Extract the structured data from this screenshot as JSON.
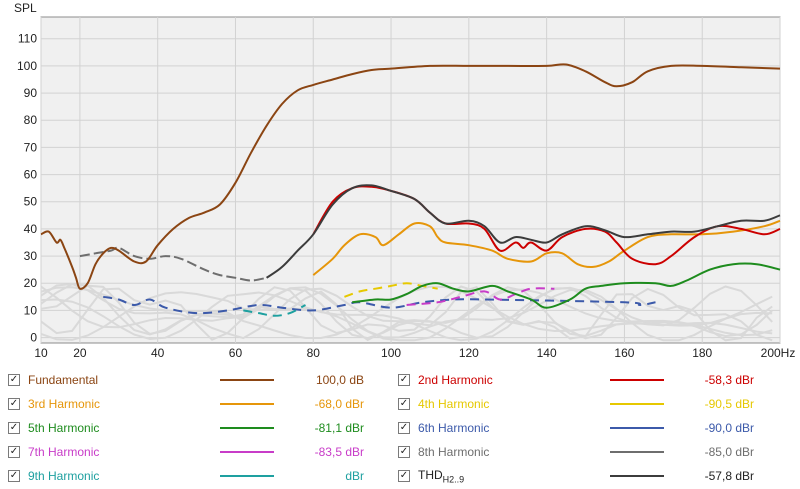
{
  "chart_data": {
    "type": "line",
    "ylabel": "SPL",
    "xunit": "Hz",
    "xlim": [
      10,
      200
    ],
    "ylim": [
      -2,
      118
    ],
    "x_ticks": [
      10,
      20,
      40,
      60,
      80,
      100,
      120,
      140,
      160,
      180,
      200
    ],
    "x_tick_labels": [
      "10",
      "20",
      "40",
      "60",
      "80",
      "100",
      "120",
      "140",
      "160",
      "180",
      "200Hz"
    ],
    "y_ticks": [
      0,
      10,
      20,
      30,
      40,
      50,
      60,
      70,
      80,
      90,
      100,
      110
    ],
    "grid": true,
    "series": [
      {
        "name": "Fundamental",
        "color": "#8b4513",
        "value": "100,0 dB",
        "points": [
          [
            10,
            38
          ],
          [
            12,
            39
          ],
          [
            14,
            35
          ],
          [
            15,
            36
          ],
          [
            16,
            33
          ],
          [
            18,
            26
          ],
          [
            19,
            22
          ],
          [
            20,
            18
          ],
          [
            22,
            20
          ],
          [
            24,
            27
          ],
          [
            26,
            31
          ],
          [
            28,
            33
          ],
          [
            30,
            32
          ],
          [
            34,
            28
          ],
          [
            37,
            28
          ],
          [
            40,
            34
          ],
          [
            44,
            40
          ],
          [
            48,
            44
          ],
          [
            52,
            46
          ],
          [
            56,
            49
          ],
          [
            60,
            57
          ],
          [
            64,
            68
          ],
          [
            68,
            78
          ],
          [
            72,
            86
          ],
          [
            76,
            91
          ],
          [
            80,
            93
          ],
          [
            85,
            95
          ],
          [
            90,
            97
          ],
          [
            95,
            98.5
          ],
          [
            100,
            99
          ],
          [
            110,
            100
          ],
          [
            120,
            100
          ],
          [
            130,
            100
          ],
          [
            140,
            100
          ],
          [
            145,
            100.5
          ],
          [
            150,
            98
          ],
          [
            155,
            94
          ],
          [
            158,
            92.5
          ],
          [
            162,
            94
          ],
          [
            166,
            98
          ],
          [
            172,
            100
          ],
          [
            180,
            100
          ],
          [
            190,
            99.5
          ],
          [
            200,
            99
          ]
        ]
      },
      {
        "name": "2nd Harmonic",
        "color": "#cc0000",
        "value": "-58,3 dBr",
        "points": [
          [
            80,
            38
          ],
          [
            85,
            50
          ],
          [
            90,
            55
          ],
          [
            95,
            55.5
          ],
          [
            100,
            54
          ],
          [
            106,
            51
          ],
          [
            110,
            46
          ],
          [
            114,
            42
          ],
          [
            120,
            42
          ],
          [
            124,
            40
          ],
          [
            128,
            32
          ],
          [
            132,
            35
          ],
          [
            134,
            33
          ],
          [
            136,
            35
          ],
          [
            140,
            32
          ],
          [
            144,
            37
          ],
          [
            150,
            40
          ],
          [
            155,
            39
          ],
          [
            158,
            35
          ],
          [
            162,
            29
          ],
          [
            168,
            27
          ],
          [
            172,
            30
          ],
          [
            178,
            37
          ],
          [
            184,
            41
          ],
          [
            190,
            40
          ],
          [
            196,
            38
          ],
          [
            200,
            40
          ]
        ]
      },
      {
        "name": "3rd Harmonic",
        "color": "#e6960a",
        "value": "-68,0 dBr",
        "points": [
          [
            80,
            23
          ],
          [
            85,
            29
          ],
          [
            88,
            34
          ],
          [
            92,
            38
          ],
          [
            96,
            37
          ],
          [
            98,
            34
          ],
          [
            102,
            38
          ],
          [
            106,
            42
          ],
          [
            110,
            41
          ],
          [
            112,
            37
          ],
          [
            114,
            35
          ],
          [
            120,
            34
          ],
          [
            126,
            32
          ],
          [
            130,
            29
          ],
          [
            136,
            28
          ],
          [
            140,
            31
          ],
          [
            144,
            31
          ],
          [
            148,
            27
          ],
          [
            152,
            26
          ],
          [
            156,
            28
          ],
          [
            160,
            32
          ],
          [
            166,
            37
          ],
          [
            172,
            38
          ],
          [
            180,
            38
          ],
          [
            188,
            39
          ],
          [
            196,
            41
          ],
          [
            200,
            43
          ]
        ]
      },
      {
        "name": "4th Harmonic",
        "color": "#e6c800",
        "value": "-90,5 dBr",
        "points": [
          [
            88,
            15
          ],
          [
            92,
            17
          ],
          [
            96,
            18
          ],
          [
            100,
            19
          ],
          [
            104,
            20
          ],
          [
            108,
            19
          ],
          [
            112,
            18
          ]
        ]
      },
      {
        "name": "5th Harmonic",
        "color": "#1e8c1e",
        "value": "-81,1 dBr",
        "points": [
          [
            90,
            13
          ],
          [
            96,
            14
          ],
          [
            100,
            14
          ],
          [
            104,
            16
          ],
          [
            108,
            19
          ],
          [
            112,
            20
          ],
          [
            116,
            18
          ],
          [
            120,
            17
          ],
          [
            126,
            19
          ],
          [
            130,
            17
          ],
          [
            136,
            14
          ],
          [
            140,
            11
          ],
          [
            146,
            14
          ],
          [
            150,
            18
          ],
          [
            154,
            19
          ],
          [
            160,
            20
          ],
          [
            168,
            20
          ],
          [
            172,
            19
          ],
          [
            176,
            21
          ],
          [
            182,
            25
          ],
          [
            188,
            27
          ],
          [
            194,
            27
          ],
          [
            200,
            25
          ]
        ]
      },
      {
        "name": "6th Harmonic",
        "color": "#3c5aaa",
        "value": "-90,0 dBr",
        "points": [
          [
            26,
            15
          ],
          [
            30,
            14
          ],
          [
            34,
            12
          ],
          [
            38,
            14
          ],
          [
            42,
            11
          ],
          [
            50,
            9
          ],
          [
            58,
            10
          ],
          [
            66,
            12
          ],
          [
            72,
            11
          ],
          [
            80,
            10
          ],
          [
            88,
            12
          ],
          [
            92,
            13
          ],
          [
            100,
            11
          ],
          [
            108,
            13
          ],
          [
            116,
            14
          ],
          [
            124,
            14
          ],
          [
            160,
            13
          ],
          [
            164,
            12
          ],
          [
            168,
            13
          ]
        ]
      },
      {
        "name": "7th Harmonic",
        "color": "#c83cc8",
        "value": "-83,5 dBr",
        "points": [
          [
            104,
            12
          ],
          [
            112,
            13
          ],
          [
            118,
            15
          ],
          [
            124,
            17
          ],
          [
            128,
            14
          ],
          [
            132,
            16
          ],
          [
            136,
            18
          ],
          [
            142,
            18
          ]
        ]
      },
      {
        "name": "8th Harmonic",
        "color": "#6e6e6e",
        "value": "-85,0 dBr",
        "points": [
          [
            20,
            30
          ],
          [
            24,
            31
          ],
          [
            28,
            32
          ],
          [
            30,
            33
          ],
          [
            34,
            30
          ],
          [
            38,
            29
          ],
          [
            42,
            30
          ],
          [
            46,
            29
          ],
          [
            52,
            25
          ],
          [
            56,
            23
          ],
          [
            60,
            22
          ],
          [
            64,
            21
          ],
          [
            68,
            22
          ]
        ]
      },
      {
        "name": "9th Harmonic",
        "color": "#1ea0a0",
        "value": "dBr",
        "points": [
          [
            62,
            10
          ],
          [
            66,
            9
          ],
          [
            70,
            8
          ],
          [
            74,
            9
          ],
          [
            78,
            12
          ]
        ]
      },
      {
        "name": "THD H2..9",
        "color": "#3c3c3c",
        "value": "-57,8 dBr",
        "points": [
          [
            68,
            22
          ],
          [
            72,
            26
          ],
          [
            76,
            32
          ],
          [
            80,
            38
          ],
          [
            85,
            49
          ],
          [
            90,
            55
          ],
          [
            95,
            56
          ],
          [
            100,
            54
          ],
          [
            106,
            51
          ],
          [
            110,
            46
          ],
          [
            114,
            42
          ],
          [
            120,
            43
          ],
          [
            124,
            41
          ],
          [
            128,
            35
          ],
          [
            132,
            37
          ],
          [
            136,
            36
          ],
          [
            140,
            35
          ],
          [
            144,
            38
          ],
          [
            150,
            41
          ],
          [
            155,
            39.5
          ],
          [
            160,
            37
          ],
          [
            166,
            38
          ],
          [
            172,
            39
          ],
          [
            178,
            39
          ],
          [
            184,
            41
          ],
          [
            190,
            43
          ],
          [
            196,
            43
          ],
          [
            200,
            45
          ]
        ]
      }
    ]
  },
  "legend": {
    "left": [
      {
        "label": "Fundamental",
        "color": "#8b4513",
        "line": "#8b4513",
        "value": "100,0 dB"
      },
      {
        "label": "3rd Harmonic",
        "color": "#e6960a",
        "line": "#e6960a",
        "value": "-68,0 dBr"
      },
      {
        "label": "5th Harmonic",
        "color": "#1e8c1e",
        "line": "#1e8c1e",
        "value": "-81,1 dBr"
      },
      {
        "label": "7th Harmonic",
        "color": "#c83cc8",
        "line": "#c83cc8",
        "value": "-83,5 dBr"
      },
      {
        "label": "9th Harmonic",
        "color": "#1ea0a0",
        "line": "#1ea0a0",
        "value": "dBr"
      }
    ],
    "right": [
      {
        "label": "2nd Harmonic",
        "color": "#cc0000",
        "line": "#cc0000",
        "value": "-58,3 dBr"
      },
      {
        "label": "4th Harmonic",
        "color": "#e6c800",
        "line": "#e6c800",
        "value": "-90,5 dBr"
      },
      {
        "label": "6th Harmonic",
        "color": "#3c5aaa",
        "line": "#3c5aaa",
        "value": "-90,0 dBr"
      },
      {
        "label": "8th Harmonic",
        "color": "#6e6e6e",
        "line": "#6e6e6e",
        "value": "-85,0 dBr"
      },
      {
        "label": "THD",
        "label_sub": "H2..9",
        "color": "#222222",
        "line": "#3c3c3c",
        "value": "-57,8 dBr"
      }
    ],
    "checkbox_glyph": "✓"
  }
}
